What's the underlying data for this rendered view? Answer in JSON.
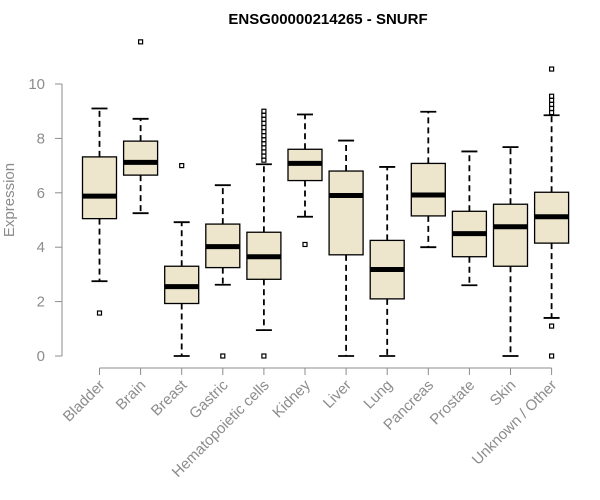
{
  "chart_data": {
    "type": "boxplot",
    "title": "ENSG00000214265 - SNURF",
    "xlabel": "",
    "ylabel": "Expression",
    "ylim": [
      0,
      11.7
    ],
    "yticks": [
      0,
      2,
      4,
      6,
      8,
      10
    ],
    "grid": false,
    "box_color": "#ede6cc",
    "median_color": "#000000",
    "categories": [
      "Bladder",
      "Brain",
      "Breast",
      "Gastric",
      "Hematopoietic cells",
      "Kidney",
      "Liver",
      "Lung",
      "Pancreas",
      "Prostate",
      "Skin",
      "Unknown / Other"
    ],
    "boxes": [
      {
        "name": "Bladder",
        "whisker_low": 2.75,
        "q1": 5.05,
        "median": 5.88,
        "q3": 7.32,
        "whisker_high": 9.1,
        "outliers": [
          1.58
        ]
      },
      {
        "name": "Brain",
        "whisker_low": 5.25,
        "q1": 6.65,
        "median": 7.12,
        "q3": 7.9,
        "whisker_high": 8.72,
        "outliers": [
          11.55
        ]
      },
      {
        "name": "Breast",
        "whisker_low": 0.0,
        "q1": 1.93,
        "median": 2.55,
        "q3": 3.3,
        "whisker_high": 4.92,
        "outliers": [
          7.0
        ]
      },
      {
        "name": "Gastric",
        "whisker_low": 2.62,
        "q1": 3.25,
        "median": 4.02,
        "q3": 4.85,
        "whisker_high": 6.28,
        "outliers": [
          0.0
        ]
      },
      {
        "name": "Hematopoietic cells",
        "whisker_low": 0.95,
        "q1": 2.82,
        "median": 3.65,
        "q3": 4.55,
        "whisker_high": 7.05,
        "outliers": [
          0.0,
          7.2,
          7.35,
          7.5,
          7.65,
          7.8,
          7.95,
          8.1,
          8.25,
          8.4,
          8.55,
          8.7,
          8.85,
          9.0
        ]
      },
      {
        "name": "Kidney",
        "whisker_low": 5.12,
        "q1": 6.45,
        "median": 7.08,
        "q3": 7.6,
        "whisker_high": 8.88,
        "outliers": [
          4.1
        ]
      },
      {
        "name": "Liver",
        "whisker_low": 0.0,
        "q1": 3.72,
        "median": 5.9,
        "q3": 6.8,
        "whisker_high": 7.92,
        "outliers": []
      },
      {
        "name": "Lung",
        "whisker_low": 0.0,
        "q1": 2.1,
        "median": 3.18,
        "q3": 4.25,
        "whisker_high": 6.95,
        "outliers": []
      },
      {
        "name": "Pancreas",
        "whisker_low": 4.0,
        "q1": 5.15,
        "median": 5.92,
        "q3": 7.08,
        "whisker_high": 8.98,
        "outliers": []
      },
      {
        "name": "Prostate",
        "whisker_low": 2.6,
        "q1": 3.65,
        "median": 4.5,
        "q3": 5.32,
        "whisker_high": 7.52,
        "outliers": []
      },
      {
        "name": "Skin",
        "whisker_low": 0.0,
        "q1": 3.3,
        "median": 4.75,
        "q3": 5.58,
        "whisker_high": 7.68,
        "outliers": []
      },
      {
        "name": "Unknown / Other",
        "whisker_low": 1.4,
        "q1": 4.15,
        "median": 5.12,
        "q3": 6.02,
        "whisker_high": 8.85,
        "outliers": [
          0.0,
          1.1,
          8.95,
          9.1,
          9.25,
          9.4,
          9.55,
          10.55
        ]
      }
    ]
  }
}
